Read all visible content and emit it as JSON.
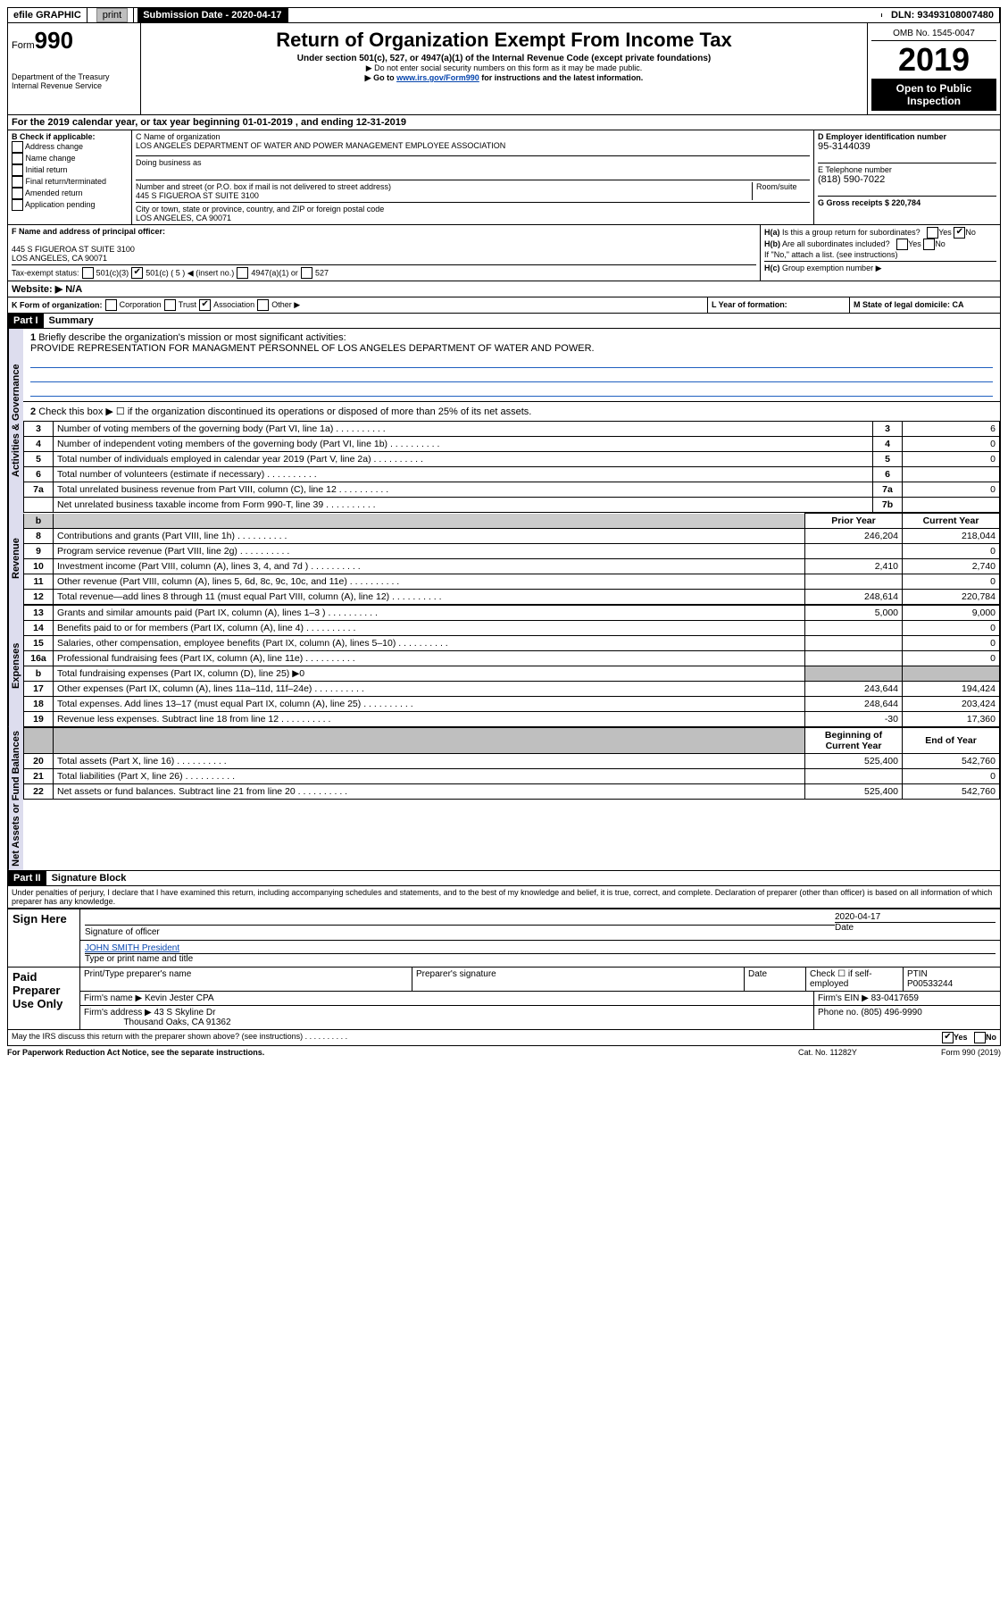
{
  "topbar": {
    "efile_label": "efile GRAPHIC",
    "print": "print",
    "sub_date_label": "Submission Date - 2020-04-17",
    "dln": "DLN: 93493108007480"
  },
  "header": {
    "form_label": "Form",
    "form_num": "990",
    "title": "Return of Organization Exempt From Income Tax",
    "subtitle": "Under section 501(c), 527, or 4947(a)(1) of the Internal Revenue Code (except private foundations)",
    "note1": "▶ Do not enter social security numbers on this form as it may be made public.",
    "note2_pre": "▶ Go to ",
    "note2_link": "www.irs.gov/Form990",
    "note2_post": " for instructions and the latest information.",
    "dept": "Department of the Treasury",
    "irs": "Internal Revenue Service",
    "omb": "OMB No. 1545-0047",
    "year": "2019",
    "open": "Open to Public Inspection"
  },
  "sectionA": {
    "period": "For the 2019 calendar year, or tax year beginning 01-01-2019     , and ending 12-31-2019",
    "check_label": "B Check if applicable:",
    "checks": [
      "Address change",
      "Name change",
      "Initial return",
      "Final return/terminated",
      "Amended return",
      "Application pending"
    ],
    "c_name_label": "C Name of organization",
    "org_name": "LOS ANGELES DEPARTMENT OF WATER AND POWER MANAGEMENT EMPLOYEE ASSOCIATION",
    "dba_label": "Doing business as",
    "addr_label": "Number and street (or P.O. box if mail is not delivered to street address)",
    "room_label": "Room/suite",
    "addr": "445 S FIGUEROA ST SUITE 3100",
    "city_label": "City or town, state or province, country, and ZIP or foreign postal code",
    "city": "LOS ANGELES, CA  90071",
    "d_label": "D Employer identification number",
    "ein": "95-3144039",
    "e_label": "E Telephone number",
    "phone": "(818) 590-7022",
    "g_label": "G Gross receipts $ 220,784",
    "f_label": "F  Name and address of principal officer:",
    "f_addr1": "445 S FIGUEROA ST SUITE 3100",
    "f_addr2": "LOS ANGELES, CA  90071",
    "ha": "Is this a group return for subordinates?",
    "hb": "Are all subordinates included?",
    "hb_note": "If \"No,\" attach a list. (see instructions)",
    "hc": "Group exemption number ▶",
    "tax_status": "Tax-exempt status:",
    "c3": "501(c)(3)",
    "c5": "501(c) ( 5 ) ◀ (insert no.)",
    "c4947": "4947(a)(1) or",
    "c527": "527",
    "website_label": "Website: ▶",
    "website": "N/A",
    "k_label": "K Form of organization:",
    "k_opts": [
      "Corporation",
      "Trust",
      "Association",
      "Other ▶"
    ],
    "l_label": "L Year of formation:",
    "m_label": "M State of legal domicile: CA",
    "yes": "Yes",
    "no": "No"
  },
  "part1": {
    "label": "Part I",
    "title": "Summary",
    "q1": "Briefly describe the organization's mission or most significant activities:",
    "mission": "PROVIDE REPRESENTATION FOR MANAGMENT PERSONNEL OF LOS ANGELES DEPARTMENT OF WATER AND POWER.",
    "q2": "Check this box ▶ ☐  if the organization discontinued its operations or disposed of more than 25% of its net assets.",
    "lines_gov": [
      {
        "n": "3",
        "d": "Number of voting members of the governing body (Part VI, line 1a)",
        "b": "3",
        "v": "6"
      },
      {
        "n": "4",
        "d": "Number of independent voting members of the governing body (Part VI, line 1b)",
        "b": "4",
        "v": "0"
      },
      {
        "n": "5",
        "d": "Total number of individuals employed in calendar year 2019 (Part V, line 2a)",
        "b": "5",
        "v": "0"
      },
      {
        "n": "6",
        "d": "Total number of volunteers (estimate if necessary)",
        "b": "6",
        "v": ""
      },
      {
        "n": "7a",
        "d": "Total unrelated business revenue from Part VIII, column (C), line 12",
        "b": "7a",
        "v": "0"
      },
      {
        "n": "",
        "d": "Net unrelated business taxable income from Form 990-T, line 39",
        "b": "7b",
        "v": ""
      }
    ],
    "prior_label": "Prior Year",
    "current_label": "Current Year",
    "lines_rev": [
      {
        "n": "8",
        "d": "Contributions and grants (Part VIII, line 1h)",
        "p": "246,204",
        "c": "218,044"
      },
      {
        "n": "9",
        "d": "Program service revenue (Part VIII, line 2g)",
        "p": "",
        "c": "0"
      },
      {
        "n": "10",
        "d": "Investment income (Part VIII, column (A), lines 3, 4, and 7d )",
        "p": "2,410",
        "c": "2,740"
      },
      {
        "n": "11",
        "d": "Other revenue (Part VIII, column (A), lines 5, 6d, 8c, 9c, 10c, and 11e)",
        "p": "",
        "c": "0"
      },
      {
        "n": "12",
        "d": "Total revenue—add lines 8 through 11 (must equal Part VIII, column (A), line 12)",
        "p": "248,614",
        "c": "220,784"
      }
    ],
    "lines_exp": [
      {
        "n": "13",
        "d": "Grants and similar amounts paid (Part IX, column (A), lines 1–3 )",
        "p": "5,000",
        "c": "9,000"
      },
      {
        "n": "14",
        "d": "Benefits paid to or for members (Part IX, column (A), line 4)",
        "p": "",
        "c": "0"
      },
      {
        "n": "15",
        "d": "Salaries, other compensation, employee benefits (Part IX, column (A), lines 5–10)",
        "p": "",
        "c": "0"
      },
      {
        "n": "16a",
        "d": "Professional fundraising fees (Part IX, column (A), line 11e)",
        "p": "",
        "c": "0"
      },
      {
        "n": "b",
        "d": "Total fundraising expenses (Part IX, column (D), line 25) ▶0",
        "p": "—",
        "c": "—"
      },
      {
        "n": "17",
        "d": "Other expenses (Part IX, column (A), lines 11a–11d, 11f–24e)",
        "p": "243,644",
        "c": "194,424"
      },
      {
        "n": "18",
        "d": "Total expenses. Add lines 13–17 (must equal Part IX, column (A), line 25)",
        "p": "248,644",
        "c": "203,424"
      },
      {
        "n": "19",
        "d": "Revenue less expenses. Subtract line 18 from line 12",
        "p": "-30",
        "c": "17,360"
      }
    ],
    "boy_label": "Beginning of Current Year",
    "eoy_label": "End of Year",
    "lines_net": [
      {
        "n": "20",
        "d": "Total assets (Part X, line 16)",
        "p": "525,400",
        "c": "542,760"
      },
      {
        "n": "21",
        "d": "Total liabilities (Part X, line 26)",
        "p": "",
        "c": "0"
      },
      {
        "n": "22",
        "d": "Net assets or fund balances. Subtract line 21 from line 20",
        "p": "525,400",
        "c": "542,760"
      }
    ],
    "vlabels": {
      "gov": "Activities & Governance",
      "rev": "Revenue",
      "exp": "Expenses",
      "net": "Net Assets or Fund Balances"
    }
  },
  "part2": {
    "label": "Part II",
    "title": "Signature Block",
    "perjury": "Under penalties of perjury, I declare that I have examined this return, including accompanying schedules and statements, and to the best of my knowledge and belief, it is true, correct, and complete. Declaration of preparer (other than officer) is based on all information of which preparer has any knowledge.",
    "sign_here": "Sign Here",
    "sig_officer": "Signature of officer",
    "date_label": "Date",
    "sig_date": "2020-04-17",
    "officer_name": "JOHN SMITH  President",
    "type_name": "Type or print name and title",
    "paid": "Paid Preparer Use Only",
    "prep_name_label": "Print/Type preparer's name",
    "prep_sig_label": "Preparer's signature",
    "check_self": "Check ☐ if self-employed",
    "ptin_label": "PTIN",
    "ptin": "P00533244",
    "firm_name_label": "Firm's name    ▶",
    "firm_name": "Kevin Jester CPA",
    "firm_ein_label": "Firm's EIN ▶",
    "firm_ein": "83-0417659",
    "firm_addr_label": "Firm's address ▶",
    "firm_addr1": "43 S Skyline Dr",
    "firm_addr2": "Thousand Oaks, CA  91362",
    "firm_phone_label": "Phone no.",
    "firm_phone": "(805) 496-9990",
    "discuss": "May the IRS discuss this return with the preparer shown above? (see instructions)",
    "paperwork": "For Paperwork Reduction Act Notice, see the separate instructions.",
    "catno": "Cat. No. 11282Y",
    "formfoot": "Form 990 (2019)"
  }
}
